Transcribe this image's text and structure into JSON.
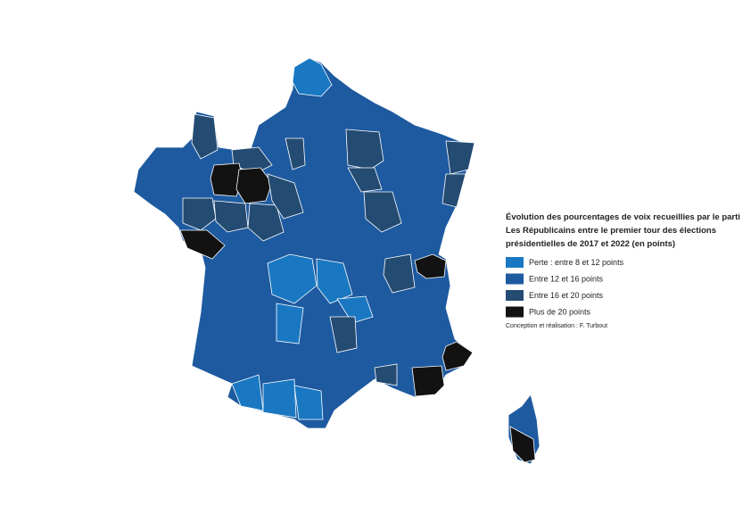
{
  "map": {
    "title": [
      "Évolution des pourcentages de voix recueillies par le parti",
      "Les Républicains entre le premier tour des élections",
      "présidentielles de 2017 et 2022 (en points)"
    ],
    "legend": [
      {
        "label": "Perte : entre 8 et 12 points",
        "color": "#1a78c2"
      },
      {
        "label": "Entre 12 et 16 points",
        "color": "#1e5aa0"
      },
      {
        "label": "Entre 16 et 20 points",
        "color": "#244b72"
      },
      {
        "label": "Plus de 20 points",
        "color": "#121212"
      }
    ],
    "credit": "Conception et réalisation : F. Turbout"
  }
}
